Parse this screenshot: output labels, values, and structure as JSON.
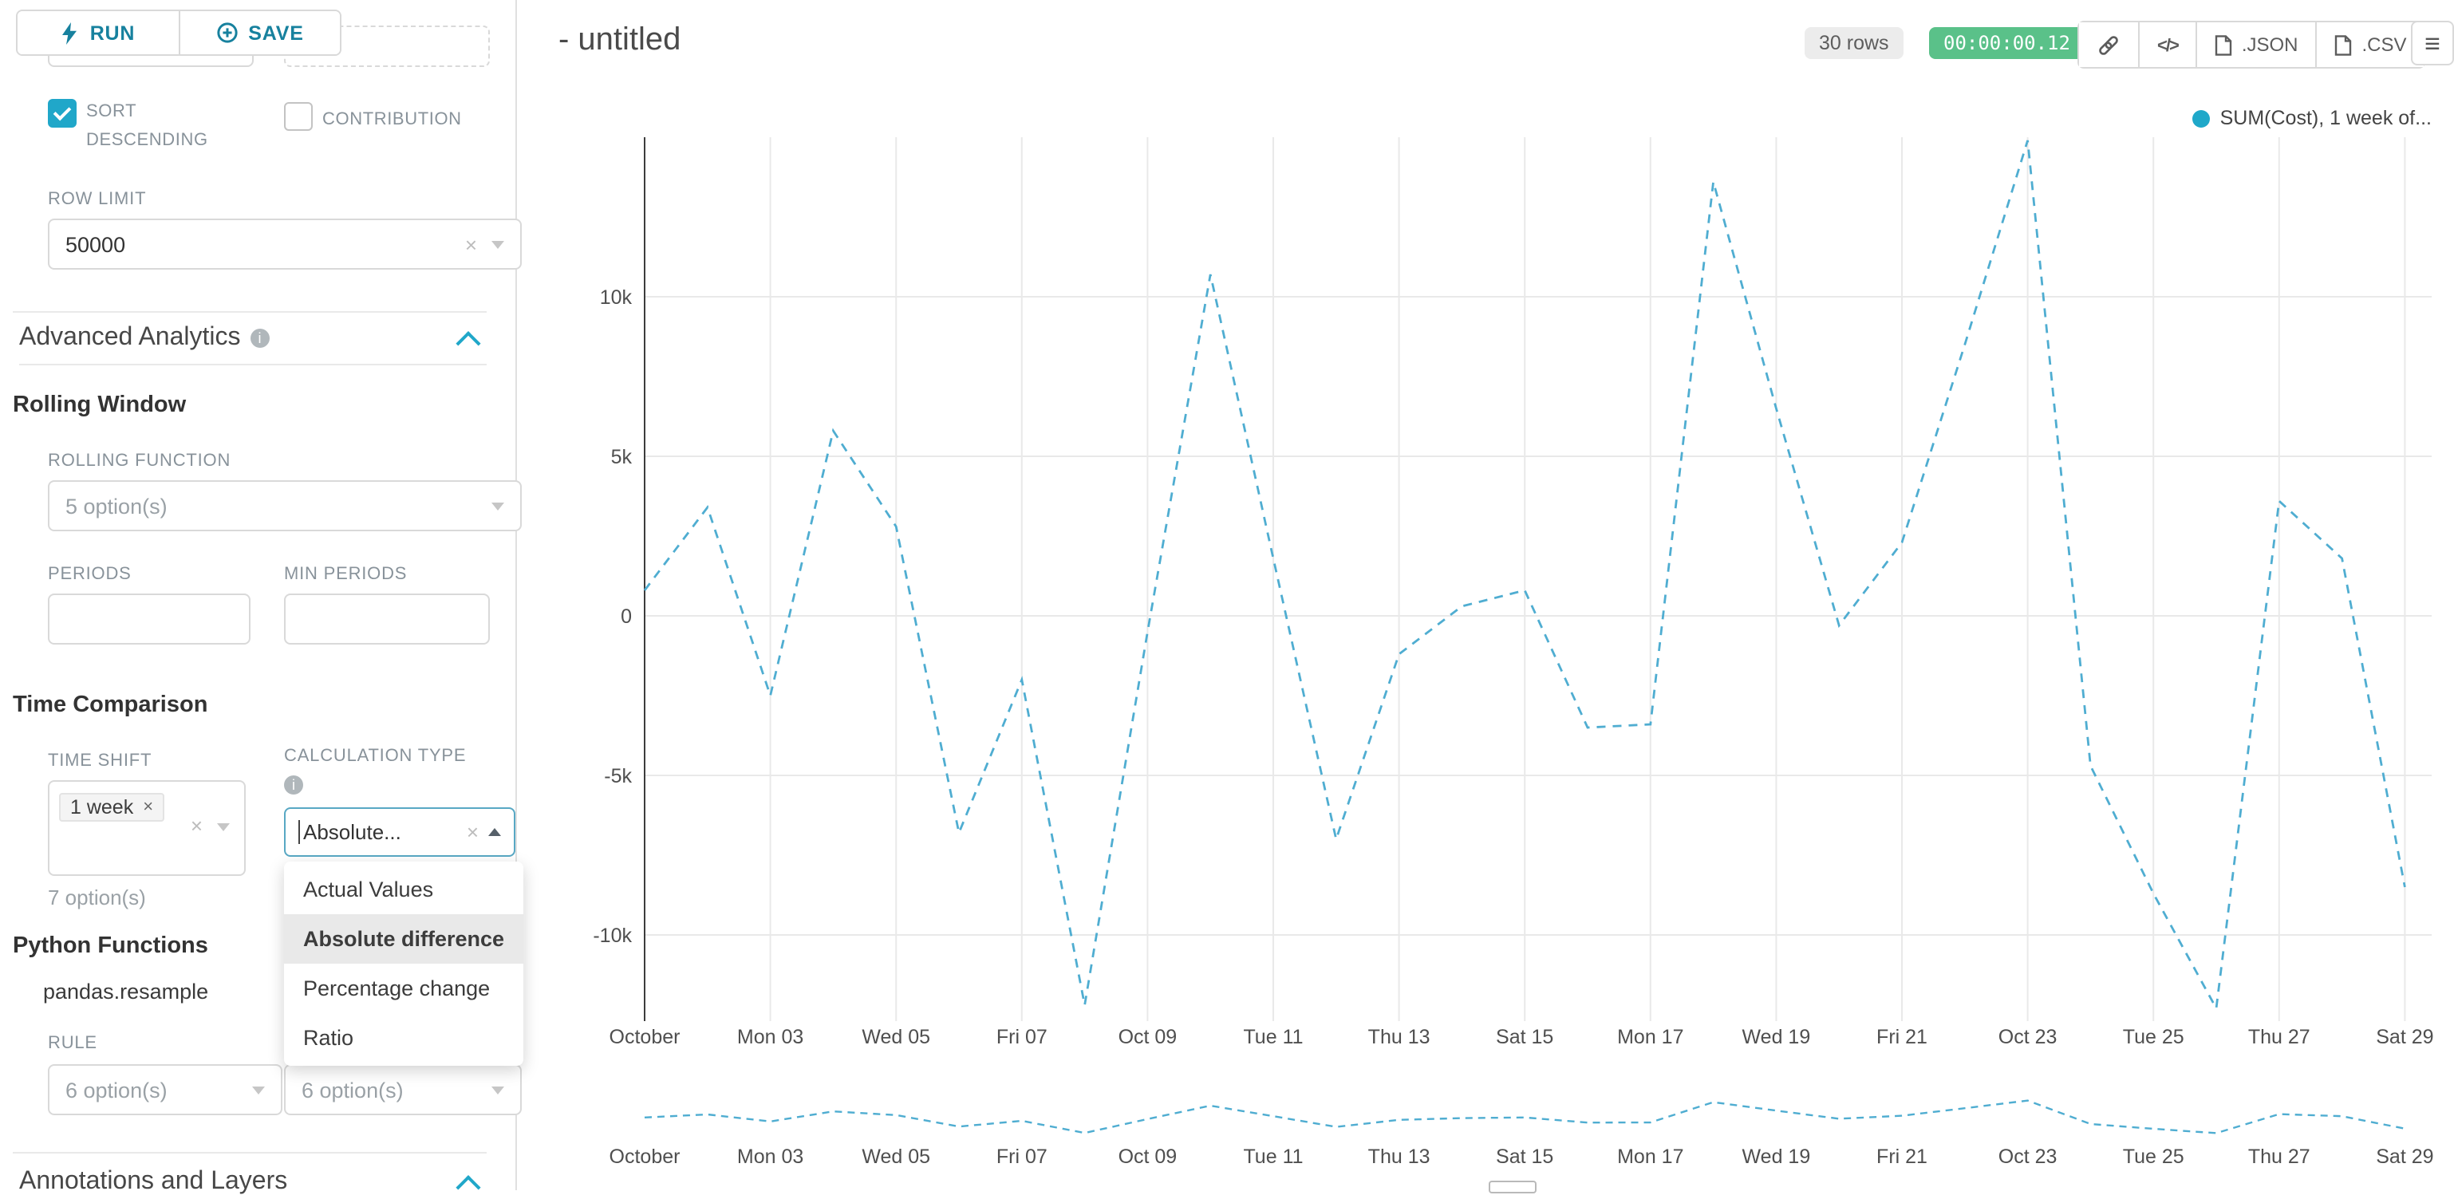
{
  "toolbar": {
    "run": "RUN",
    "save": "SAVE"
  },
  "panel": {
    "sort_descending": "SORT DESCENDING",
    "contribution": "CONTRIBUTION",
    "row_limit_label": "ROW LIMIT",
    "row_limit_value": "50000",
    "advanced_analytics": "Advanced Analytics",
    "rolling_window": "Rolling Window",
    "rolling_function_label": "ROLLING FUNCTION",
    "rolling_function_value": "5 option(s)",
    "periods_label": "PERIODS",
    "min_periods_label": "MIN PERIODS",
    "time_comparison": "Time Comparison",
    "time_shift_label": "TIME SHIFT",
    "time_shift_tag": "1 week",
    "time_shift_hint": "7 option(s)",
    "calculation_type_label": "CALCULATION TYPE",
    "calculation_type_value": "Absolute...",
    "calc_options": [
      "Actual Values",
      "Absolute difference",
      "Percentage change",
      "Ratio"
    ],
    "python_functions": "Python Functions",
    "pandas_resample": "pandas.resample",
    "rule_label": "RULE",
    "rule_value": "6 option(s)",
    "method_value": "6 option(s)",
    "annotations": "Annotations and Layers"
  },
  "header": {
    "title": "- untitled",
    "rows_badge": "30 rows",
    "timer_badge": "00:00:00.12",
    "json_label": ".JSON",
    "csv_label": ".CSV"
  },
  "chart_data": {
    "type": "line",
    "title": "",
    "legend": [
      {
        "name": "SUM(Cost), 1 week of...",
        "color": "#1FA8C9"
      }
    ],
    "legend_position": "top-right",
    "grid": true,
    "ylim": [
      -13000,
      15000
    ],
    "y_ticks": [
      {
        "value": 10000,
        "label": "10k"
      },
      {
        "value": 5000,
        "label": "5k"
      },
      {
        "value": 0,
        "label": "0"
      },
      {
        "value": -5000,
        "label": "-5k"
      },
      {
        "value": -10000,
        "label": "-10k"
      }
    ],
    "x_ticks": [
      {
        "day": 1,
        "label": "October"
      },
      {
        "day": 3,
        "label": "Mon 03"
      },
      {
        "day": 5,
        "label": "Wed 05"
      },
      {
        "day": 7,
        "label": "Fri 07"
      },
      {
        "day": 9,
        "label": "Oct 09"
      },
      {
        "day": 11,
        "label": "Tue 11"
      },
      {
        "day": 13,
        "label": "Thu 13"
      },
      {
        "day": 15,
        "label": "Sat 15"
      },
      {
        "day": 17,
        "label": "Mon 17"
      },
      {
        "day": 19,
        "label": "Wed 19"
      },
      {
        "day": 21,
        "label": "Fri 21"
      },
      {
        "day": 23,
        "label": "Oct 23"
      },
      {
        "day": 25,
        "label": "Tue 25"
      },
      {
        "day": 27,
        "label": "Thu 27"
      },
      {
        "day": 29,
        "label": "Sat 29"
      }
    ],
    "series": [
      {
        "name": "SUM(Cost), 1 week of...",
        "color": "#4fadd1",
        "dashed": true,
        "x_day": [
          1,
          2,
          3,
          4,
          5,
          6,
          7,
          8,
          9,
          10,
          11,
          12,
          13,
          14,
          15,
          16,
          17,
          18,
          19,
          20,
          21,
          22,
          23,
          24,
          25,
          26,
          27,
          28,
          29
        ],
        "values": [
          800,
          3400,
          -2500,
          5800,
          2800,
          -6800,
          -2000,
          -12200,
          -500,
          10700,
          1800,
          -7000,
          -1200,
          300,
          800,
          -3500,
          -3400,
          13600,
          6500,
          -300,
          2300,
          8500,
          14900,
          -4700,
          -8700,
          -12300,
          3600,
          1800,
          -8500
        ]
      }
    ],
    "mini_preview": true
  }
}
